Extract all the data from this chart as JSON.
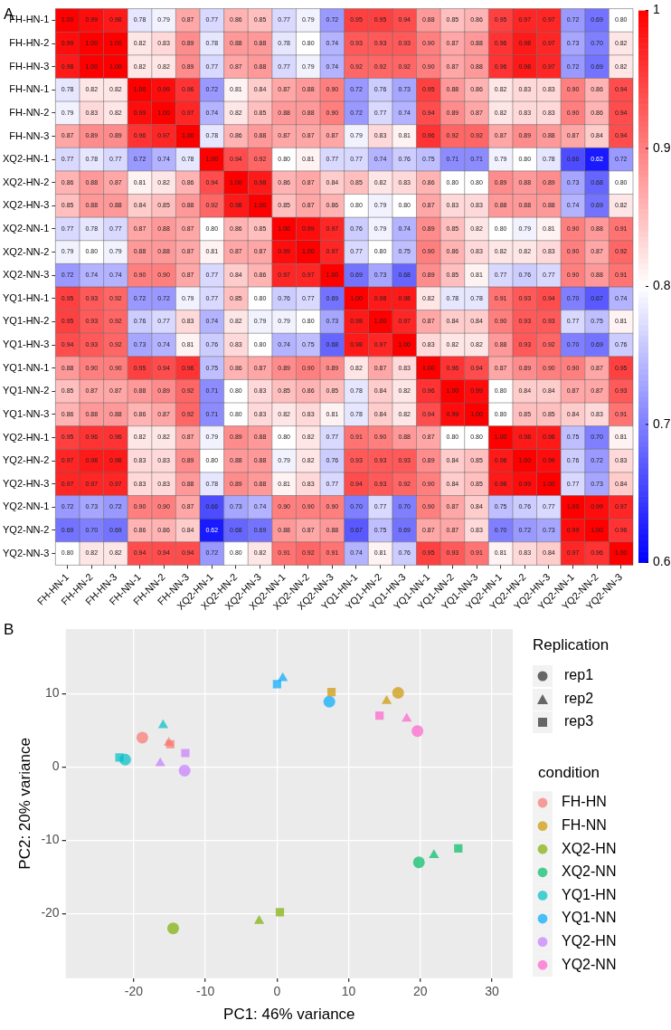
{
  "chart_data": [
    {
      "type": "heatmap",
      "title": "A",
      "cell_labels": [
        [
          "1.00",
          "0.99",
          "0.98",
          "0.78",
          "0.79",
          "0.87",
          "0.77",
          "0.86",
          "0.85",
          "0.77",
          "0.79",
          "0.72",
          "0.95",
          "0.95",
          "0.94",
          "0.88",
          "0.85",
          "0.86",
          "0.95",
          "0.97",
          "0.97",
          "0.72",
          "0.69",
          "0.80"
        ],
        [
          "0.99",
          "1.00",
          "1.00",
          "0.82",
          "0.83",
          "0.89",
          "0.78",
          "0.88",
          "0.88",
          "0.78",
          "0.80",
          "0.74",
          "0.93",
          "0.93",
          "0.93",
          "0.90",
          "0.87",
          "0.88",
          "0.96",
          "0.98",
          "0.97",
          "0.73",
          "0.70",
          "0.82"
        ],
        [
          "0.98",
          "1.00",
          "1.00",
          "0.82",
          "0.82",
          "0.89",
          "0.77",
          "0.87",
          "0.88",
          "0.77",
          "0.79",
          "0.74",
          "0.92",
          "0.92",
          "0.92",
          "0.90",
          "0.87",
          "0.88",
          "0.96",
          "0.98",
          "0.97",
          "0.72",
          "0.69",
          "0.82"
        ],
        [
          "0.78",
          "0.82",
          "0.82",
          "1.00",
          "0.99",
          "0.96",
          "0.72",
          "0.81",
          "0.84",
          "0.87",
          "0.88",
          "0.90",
          "0.72",
          "0.76",
          "0.73",
          "0.95",
          "0.88",
          "0.86",
          "0.82",
          "0.83",
          "0.83",
          "0.90",
          "0.86",
          "0.94"
        ],
        [
          "0.79",
          "0.83",
          "0.82",
          "0.99",
          "1.00",
          "0.97",
          "0.74",
          "0.82",
          "0.85",
          "0.88",
          "0.88",
          "0.90",
          "0.72",
          "0.77",
          "0.74",
          "0.94",
          "0.89",
          "0.87",
          "0.82",
          "0.83",
          "0.83",
          "0.90",
          "0.86",
          "0.94"
        ],
        [
          "0.87",
          "0.89",
          "0.89",
          "0.96",
          "0.97",
          "1.00",
          "0.78",
          "0.86",
          "0.88",
          "0.87",
          "0.87",
          "0.87",
          "0.79",
          "0.83",
          "0.81",
          "0.96",
          "0.92",
          "0.92",
          "0.87",
          "0.89",
          "0.88",
          "0.87",
          "0.84",
          "0.94"
        ],
        [
          "0.77",
          "0.78",
          "0.77",
          "0.72",
          "0.74",
          "0.78",
          "1.00",
          "0.94",
          "0.92",
          "0.80",
          "0.81",
          "0.77",
          "0.77",
          "0.74",
          "0.76",
          "0.75",
          "0.71",
          "0.71",
          "0.79",
          "0.80",
          "0.78",
          "0.66",
          "0.62",
          "0.72"
        ],
        [
          "0.86",
          "0.88",
          "0.87",
          "0.81",
          "0.82",
          "0.86",
          "0.94",
          "1.00",
          "0.98",
          "0.86",
          "0.87",
          "0.84",
          "0.85",
          "0.82",
          "0.83",
          "0.86",
          "0.80",
          "0.80",
          "0.89",
          "0.88",
          "0.89",
          "0.73",
          "0.68",
          "0.80"
        ],
        [
          "0.85",
          "0.88",
          "0.88",
          "0.84",
          "0.85",
          "0.88",
          "0.92",
          "0.98",
          "1.00",
          "0.85",
          "0.87",
          "0.86",
          "0.80",
          "0.79",
          "0.80",
          "0.87",
          "0.83",
          "0.83",
          "0.88",
          "0.88",
          "0.88",
          "0.74",
          "0.69",
          "0.82"
        ],
        [
          "0.77",
          "0.78",
          "0.77",
          "0.87",
          "0.88",
          "0.87",
          "0.80",
          "0.86",
          "0.85",
          "1.00",
          "0.99",
          "0.97",
          "0.76",
          "0.79",
          "0.74",
          "0.89",
          "0.85",
          "0.82",
          "0.80",
          "0.79",
          "0.81",
          "0.90",
          "0.88",
          "0.91"
        ],
        [
          "0.79",
          "0.80",
          "0.79",
          "0.88",
          "0.88",
          "0.87",
          "0.81",
          "0.87",
          "0.87",
          "0.99",
          "1.00",
          "0.97",
          "0.77",
          "0.80",
          "0.75",
          "0.90",
          "0.86",
          "0.83",
          "0.82",
          "0.82",
          "0.83",
          "0.90",
          "0.87",
          "0.92"
        ],
        [
          "0.72",
          "0.74",
          "0.74",
          "0.90",
          "0.90",
          "0.87",
          "0.77",
          "0.84",
          "0.86",
          "0.97",
          "0.97",
          "1.00",
          "0.69",
          "0.73",
          "0.68",
          "0.89",
          "0.85",
          "0.81",
          "0.77",
          "0.76",
          "0.77",
          "0.90",
          "0.88",
          "0.91"
        ],
        [
          "0.95",
          "0.93",
          "0.92",
          "0.72",
          "0.72",
          "0.79",
          "0.77",
          "0.85",
          "0.80",
          "0.76",
          "0.77",
          "0.69",
          "1.00",
          "0.98",
          "0.98",
          "0.82",
          "0.78",
          "0.78",
          "0.91",
          "0.93",
          "0.94",
          "0.70",
          "0.67",
          "0.74"
        ],
        [
          "0.95",
          "0.93",
          "0.92",
          "0.76",
          "0.77",
          "0.83",
          "0.74",
          "0.82",
          "0.79",
          "0.79",
          "0.80",
          "0.73",
          "0.98",
          "1.00",
          "0.97",
          "0.87",
          "0.84",
          "0.84",
          "0.90",
          "0.93",
          "0.93",
          "0.77",
          "0.75",
          "0.81"
        ],
        [
          "0.94",
          "0.93",
          "0.92",
          "0.73",
          "0.74",
          "0.81",
          "0.76",
          "0.83",
          "0.80",
          "0.74",
          "0.75",
          "0.68",
          "0.98",
          "0.97",
          "1.00",
          "0.83",
          "0.82",
          "0.82",
          "0.88",
          "0.93",
          "0.92",
          "0.70",
          "0.69",
          "0.76"
        ],
        [
          "0.88",
          "0.90",
          "0.90",
          "0.95",
          "0.94",
          "0.96",
          "0.75",
          "0.86",
          "0.87",
          "0.89",
          "0.90",
          "0.89",
          "0.82",
          "0.87",
          "0.83",
          "1.00",
          "0.96",
          "0.94",
          "0.87",
          "0.89",
          "0.90",
          "0.90",
          "0.87",
          "0.95"
        ],
        [
          "0.85",
          "0.87",
          "0.87",
          "0.88",
          "0.89",
          "0.92",
          "0.71",
          "0.80",
          "0.83",
          "0.85",
          "0.86",
          "0.85",
          "0.78",
          "0.84",
          "0.82",
          "0.96",
          "1.00",
          "0.99",
          "0.80",
          "0.84",
          "0.84",
          "0.87",
          "0.87",
          "0.93"
        ],
        [
          "0.86",
          "0.88",
          "0.88",
          "0.86",
          "0.87",
          "0.92",
          "0.71",
          "0.80",
          "0.83",
          "0.82",
          "0.83",
          "0.81",
          "0.78",
          "0.84",
          "0.82",
          "0.94",
          "0.99",
          "1.00",
          "0.80",
          "0.85",
          "0.85",
          "0.84",
          "0.83",
          "0.91"
        ],
        [
          "0.95",
          "0.96",
          "0.96",
          "0.82",
          "0.82",
          "0.87",
          "0.79",
          "0.89",
          "0.88",
          "0.80",
          "0.82",
          "0.77",
          "0.91",
          "0.90",
          "0.88",
          "0.87",
          "0.80",
          "0.80",
          "1.00",
          "0.98",
          "0.98",
          "0.75",
          "0.70",
          "0.81"
        ],
        [
          "0.97",
          "0.98",
          "0.98",
          "0.83",
          "0.83",
          "0.89",
          "0.80",
          "0.88",
          "0.88",
          "0.79",
          "0.82",
          "0.76",
          "0.93",
          "0.93",
          "0.93",
          "0.89",
          "0.84",
          "0.85",
          "0.98",
          "1.00",
          "0.99",
          "0.76",
          "0.72",
          "0.83"
        ],
        [
          "0.97",
          "0.97",
          "0.97",
          "0.83",
          "0.83",
          "0.88",
          "0.78",
          "0.89",
          "0.88",
          "0.81",
          "0.83",
          "0.77",
          "0.94",
          "0.93",
          "0.92",
          "0.90",
          "0.84",
          "0.85",
          "0.98",
          "0.99",
          "1.00",
          "0.77",
          "0.73",
          "0.84"
        ],
        [
          "0.72",
          "0.73",
          "0.72",
          "0.90",
          "0.90",
          "0.87",
          "0.66",
          "0.73",
          "0.74",
          "0.90",
          "0.90",
          "0.90",
          "0.70",
          "0.77",
          "0.70",
          "0.90",
          "0.87",
          "0.84",
          "0.75",
          "0.76",
          "0.77",
          "1.00",
          "0.99",
          "0.97"
        ],
        [
          "0.69",
          "0.70",
          "0.69",
          "0.86",
          "0.86",
          "0.84",
          "0.62",
          "0.68",
          "0.69",
          "0.88",
          "0.87",
          "0.88",
          "0.67",
          "0.75",
          "0.69",
          "0.87",
          "0.87",
          "0.83",
          "0.70",
          "0.72",
          "0.73",
          "0.99",
          "1.00",
          "0.96"
        ],
        [
          "0.80",
          "0.82",
          "0.82",
          "0.94",
          "0.94",
          "0.94",
          "0.72",
          "0.80",
          "0.82",
          "0.91",
          "0.92",
          "0.91",
          "0.74",
          "0.81",
          "0.76",
          "0.95",
          "0.93",
          "0.91",
          "0.81",
          "0.83",
          "0.84",
          "0.97",
          "0.96",
          "1.00"
        ]
      ],
      "colors": [
        "#0000ff",
        "#ffffff",
        "#ff0000"
      ],
      "clim": [
        0.6,
        1
      ],
      "cticks": [
        0.6,
        0.7,
        0.8,
        0.9,
        1
      ],
      "categories": [
        "FH-HN-1",
        "FH-HN-2",
        "FH-HN-3",
        "FH-NN-1",
        "FH-NN-2",
        "FH-NN-3",
        "XQ2-HN-1",
        "XQ2-HN-2",
        "XQ2-HN-3",
        "XQ2-NN-1",
        "XQ2-NN-2",
        "XQ2-NN-3",
        "YQ1-HN-1",
        "YQ1-HN-2",
        "YQ1-HN-3",
        "YQ1-NN-1",
        "YQ1-NN-2",
        "YQ1-NN-3",
        "YQ2-HN-1",
        "YQ2-HN-2",
        "YQ2-HN-3",
        "YQ2-NN-1",
        "YQ2-NN-2",
        "YQ2-NN-3"
      ],
      "y_categories": [
        "FH-HN-1",
        "FH-HN-2",
        "FH-HN-3",
        "FH-NN-1",
        "FH-NN-2",
        "FH-NN-3",
        "XQ2-HN-1",
        "XQ2-HN-2",
        "XQ2-HN-3",
        "XQ2-NN-1",
        "XQ2-NN-2",
        "XQ2-NN-3",
        "YQ1-HN-1",
        "YQ1-HN-2",
        "YQ1-HN-3",
        "YQ1-NN-1",
        "YQ1-NN-2",
        "YQ1-NN-3",
        "YQ2-HN-1",
        "YQ2-HN-2",
        "YQ2-HN-3",
        "YQ2-NN-1",
        "YQ2-NN-2",
        "YQ2-NN-3"
      ],
      "cells": [
        [
          1.0,
          0.99,
          0.98,
          0.78,
          0.79,
          0.87,
          0.77,
          0.86,
          0.85,
          0.77,
          0.79,
          0.72,
          0.95,
          0.95,
          0.94,
          0.88,
          0.85,
          0.86,
          0.95,
          0.97,
          0.97,
          0.72,
          0.69,
          0.8
        ],
        [
          0.99,
          1.0,
          1.0,
          0.82,
          0.83,
          0.89,
          0.78,
          0.88,
          0.88,
          0.78,
          0.8,
          0.74,
          0.93,
          0.93,
          0.93,
          0.9,
          0.87,
          0.88,
          0.96,
          0.98,
          0.97,
          0.73,
          0.7,
          0.82
        ],
        [
          0.98,
          1.0,
          1.0,
          0.82,
          0.82,
          0.89,
          0.77,
          0.87,
          0.88,
          0.77,
          0.79,
          0.74,
          0.92,
          0.92,
          0.92,
          0.9,
          0.87,
          0.88,
          0.96,
          0.98,
          0.97,
          0.72,
          0.69,
          0.82
        ],
        [
          0.78,
          0.82,
          0.82,
          1.0,
          0.99,
          0.96,
          0.72,
          0.81,
          0.84,
          0.87,
          0.88,
          0.9,
          0.72,
          0.76,
          0.73,
          0.95,
          0.88,
          0.86,
          0.82,
          0.83,
          0.83,
          0.9,
          0.86,
          0.94
        ],
        [
          0.79,
          0.83,
          0.82,
          0.99,
          1.0,
          0.97,
          0.74,
          0.82,
          0.85,
          0.88,
          0.88,
          0.9,
          0.72,
          0.77,
          0.74,
          0.94,
          0.89,
          0.87,
          0.82,
          0.83,
          0.83,
          0.9,
          0.86,
          0.94
        ],
        [
          0.87,
          0.89,
          0.89,
          0.96,
          0.97,
          1.0,
          0.78,
          0.86,
          0.88,
          0.87,
          0.87,
          0.87,
          0.79,
          0.83,
          0.81,
          0.96,
          0.92,
          0.92,
          0.87,
          0.89,
          0.88,
          0.87,
          0.84,
          0.94
        ],
        [
          0.77,
          0.78,
          0.77,
          0.72,
          0.74,
          0.78,
          1.0,
          0.94,
          0.92,
          0.8,
          0.81,
          0.77,
          0.77,
          0.74,
          0.76,
          0.75,
          0.71,
          0.71,
          0.79,
          0.8,
          0.78,
          0.66,
          0.62,
          0.72
        ],
        [
          0.86,
          0.88,
          0.87,
          0.81,
          0.82,
          0.86,
          0.94,
          1.0,
          0.98,
          0.86,
          0.87,
          0.84,
          0.85,
          0.82,
          0.83,
          0.86,
          0.8,
          0.8,
          0.89,
          0.88,
          0.89,
          0.73,
          0.68,
          0.8
        ],
        [
          0.85,
          0.88,
          0.88,
          0.84,
          0.85,
          0.88,
          0.92,
          0.98,
          1.0,
          0.85,
          0.87,
          0.86,
          0.8,
          0.79,
          0.8,
          0.87,
          0.83,
          0.83,
          0.88,
          0.88,
          0.88,
          0.74,
          0.69,
          0.82
        ],
        [
          0.77,
          0.78,
          0.77,
          0.87,
          0.88,
          0.87,
          0.8,
          0.86,
          0.85,
          1.0,
          0.99,
          0.97,
          0.76,
          0.79,
          0.74,
          0.89,
          0.85,
          0.82,
          0.8,
          0.79,
          0.81,
          0.9,
          0.88,
          0.91
        ],
        [
          0.79,
          0.8,
          0.79,
          0.88,
          0.88,
          0.87,
          0.81,
          0.87,
          0.87,
          0.99,
          1.0,
          0.97,
          0.77,
          0.8,
          0.75,
          0.9,
          0.86,
          0.83,
          0.82,
          0.82,
          0.83,
          0.9,
          0.87,
          0.92
        ],
        [
          0.72,
          0.74,
          0.74,
          0.9,
          0.9,
          0.87,
          0.77,
          0.84,
          0.86,
          0.97,
          0.97,
          1.0,
          0.69,
          0.73,
          0.68,
          0.89,
          0.85,
          0.81,
          0.77,
          0.76,
          0.77,
          0.9,
          0.88,
          0.91
        ],
        [
          0.95,
          0.93,
          0.92,
          0.72,
          0.72,
          0.79,
          0.77,
          0.85,
          0.8,
          0.76,
          0.77,
          0.69,
          1.0,
          0.98,
          0.98,
          0.82,
          0.78,
          0.78,
          0.91,
          0.93,
          0.94,
          0.7,
          0.67,
          0.74
        ],
        [
          0.95,
          0.93,
          0.92,
          0.76,
          0.77,
          0.83,
          0.74,
          0.82,
          0.79,
          0.79,
          0.8,
          0.73,
          0.98,
          1.0,
          0.97,
          0.87,
          0.84,
          0.84,
          0.9,
          0.93,
          0.93,
          0.77,
          0.75,
          0.81
        ],
        [
          0.94,
          0.93,
          0.92,
          0.73,
          0.74,
          0.81,
          0.76,
          0.83,
          0.8,
          0.74,
          0.75,
          0.68,
          0.98,
          0.97,
          1.0,
          0.83,
          0.82,
          0.82,
          0.88,
          0.93,
          0.92,
          0.7,
          0.69,
          0.76
        ],
        [
          0.88,
          0.9,
          0.9,
          0.95,
          0.94,
          0.96,
          0.75,
          0.86,
          0.87,
          0.89,
          0.9,
          0.89,
          0.82,
          0.87,
          0.83,
          1.0,
          0.96,
          0.94,
          0.87,
          0.89,
          0.9,
          0.9,
          0.87,
          0.95
        ],
        [
          0.85,
          0.87,
          0.87,
          0.88,
          0.89,
          0.92,
          0.71,
          0.8,
          0.83,
          0.85,
          0.86,
          0.85,
          0.78,
          0.84,
          0.82,
          0.96,
          1.0,
          0.99,
          0.8,
          0.84,
          0.84,
          0.87,
          0.87,
          0.93
        ],
        [
          0.86,
          0.88,
          0.88,
          0.86,
          0.87,
          0.92,
          0.71,
          0.8,
          0.83,
          0.82,
          0.83,
          0.81,
          0.78,
          0.84,
          0.82,
          0.94,
          0.99,
          1.0,
          0.8,
          0.85,
          0.85,
          0.84,
          0.83,
          0.91
        ],
        [
          0.95,
          0.96,
          0.96,
          0.82,
          0.82,
          0.87,
          0.79,
          0.89,
          0.88,
          0.8,
          0.82,
          0.77,
          0.91,
          0.9,
          0.88,
          0.87,
          0.8,
          0.8,
          1.0,
          0.98,
          0.98,
          0.75,
          0.7,
          0.81
        ],
        [
          0.97,
          0.98,
          0.98,
          0.83,
          0.83,
          0.89,
          0.8,
          0.88,
          0.88,
          0.79,
          0.82,
          0.76,
          0.93,
          0.93,
          0.93,
          0.89,
          0.84,
          0.85,
          0.98,
          1.0,
          0.99,
          0.76,
          0.72,
          0.83
        ],
        [
          0.97,
          0.97,
          0.97,
          0.83,
          0.83,
          0.88,
          0.78,
          0.89,
          0.88,
          0.81,
          0.83,
          0.77,
          0.94,
          0.93,
          0.92,
          0.9,
          0.84,
          0.85,
          0.98,
          0.99,
          1.0,
          0.77,
          0.73,
          0.84
        ],
        [
          0.72,
          0.73,
          0.72,
          0.9,
          0.9,
          0.87,
          0.66,
          0.73,
          0.74,
          0.9,
          0.9,
          0.9,
          0.7,
          0.77,
          0.7,
          0.9,
          0.87,
          0.84,
          0.75,
          0.76,
          0.77,
          1.0,
          0.99,
          0.97
        ],
        [
          0.69,
          0.7,
          0.69,
          0.86,
          0.86,
          0.84,
          0.62,
          0.68,
          0.69,
          0.88,
          0.87,
          0.88,
          0.67,
          0.75,
          0.69,
          0.87,
          0.87,
          0.83,
          0.7,
          0.72,
          0.73,
          0.99,
          1.0,
          0.96
        ],
        [
          0.8,
          0.82,
          0.82,
          0.94,
          0.94,
          0.94,
          0.72,
          0.8,
          0.82,
          0.91,
          0.92,
          0.91,
          0.74,
          0.81,
          0.76,
          0.95,
          0.93,
          0.91,
          0.81,
          0.83,
          0.84,
          0.97,
          0.96,
          1.0
        ]
      ]
    },
    {
      "type": "scatter",
      "title": "B",
      "xlabel": "PC1: 46% variance",
      "ylabel": "PC2: 20% variance",
      "legend": "right",
      "legend_title": "condition",
      "grid": true,
      "marker": [
        "circle",
        "triangle",
        "square"
      ],
      "annotations": [
        "Replication",
        "rep1",
        "rep2",
        "rep3"
      ],
      "xlim": [
        -29.5,
        32.9
      ],
      "ylim": [
        -28.8,
        18.8
      ],
      "xticks": [
        -20,
        -10,
        0,
        10,
        20,
        30
      ],
      "yticks": [
        -20,
        -10,
        0,
        10
      ],
      "series": [
        {
          "name": "FH-HN",
          "color": "#f8766d",
          "x": [
            -18.8,
            -15.1,
            -14.9
          ],
          "values": [
            4.0,
            3.3,
            3.1
          ]
        },
        {
          "name": "FH-NN",
          "color": "#cd9600",
          "x": [
            16.9,
            15.3,
            7.6
          ],
          "values": [
            10.1,
            9.0,
            10.2
          ]
        },
        {
          "name": "XQ2-HN",
          "color": "#7cae00",
          "x": [
            -14.5,
            -2.5,
            0.4
          ],
          "values": [
            -22.0,
            -21.0,
            -19.8
          ]
        },
        {
          "name": "XQ2-NN",
          "color": "#00be67",
          "x": [
            19.8,
            21.9,
            25.3
          ],
          "values": [
            -13.0,
            -12.0,
            -11.1
          ]
        },
        {
          "name": "YQ1-HN",
          "color": "#00bfc4",
          "x": [
            -21.2,
            -15.9,
            -22.0
          ],
          "values": [
            1.0,
            5.7,
            1.3
          ]
        },
        {
          "name": "YQ1-NN",
          "color": "#00a9ff",
          "x": [
            7.3,
            0.8,
            0.0
          ],
          "values": [
            8.9,
            12.1,
            11.3
          ]
        },
        {
          "name": "YQ2-HN",
          "color": "#c77cff",
          "x": [
            -12.9,
            -16.3,
            -12.8
          ],
          "values": [
            -0.5,
            0.5,
            1.9
          ]
        },
        {
          "name": "YQ2-NN",
          "color": "#ff61cc",
          "x": [
            19.6,
            18.1,
            14.3
          ],
          "values": [
            4.9,
            6.6,
            7.0
          ]
        }
      ]
    }
  ]
}
